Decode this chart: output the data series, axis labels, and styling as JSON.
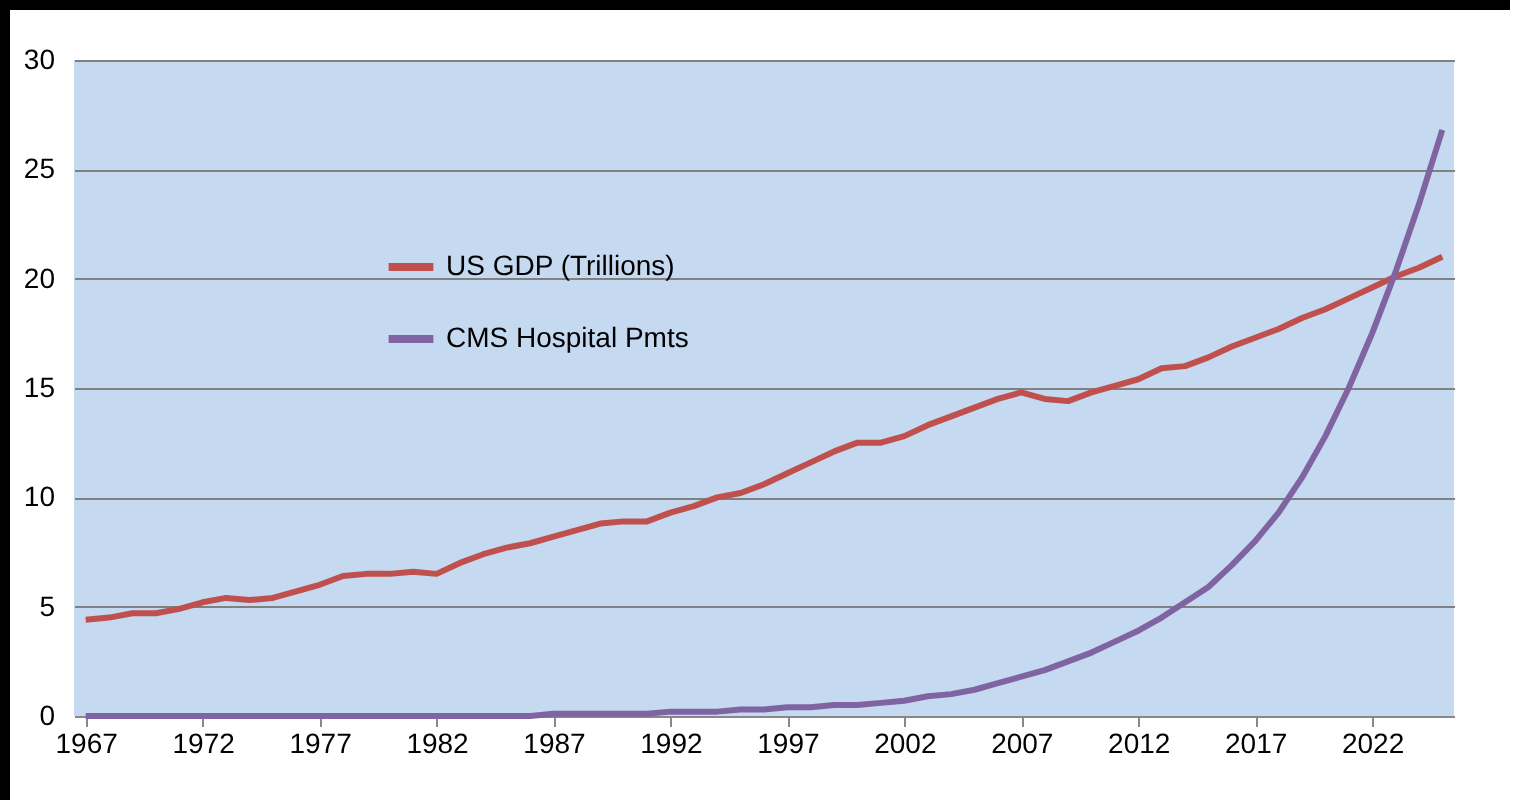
{
  "chart_data": {
    "type": "line",
    "x": [
      1967,
      1968,
      1969,
      1970,
      1971,
      1972,
      1973,
      1974,
      1975,
      1976,
      1977,
      1978,
      1979,
      1980,
      1981,
      1982,
      1983,
      1984,
      1985,
      1986,
      1987,
      1988,
      1989,
      1990,
      1991,
      1992,
      1993,
      1994,
      1995,
      1996,
      1997,
      1998,
      1999,
      2000,
      2001,
      2002,
      2003,
      2004,
      2005,
      2006,
      2007,
      2008,
      2009,
      2010,
      2011,
      2012,
      2013,
      2014,
      2015,
      2016,
      2017,
      2018,
      2019,
      2020,
      2021,
      2022,
      2023,
      2024,
      2025
    ],
    "series": [
      {
        "name": "US GDP (Trillions)",
        "color": "#c0504d",
        "values": [
          4.4,
          4.5,
          4.7,
          4.7,
          4.9,
          5.2,
          5.4,
          5.3,
          5.4,
          5.7,
          6.0,
          6.4,
          6.5,
          6.5,
          6.6,
          6.5,
          7.0,
          7.4,
          7.7,
          7.9,
          8.2,
          8.5,
          8.8,
          8.9,
          8.9,
          9.3,
          9.6,
          10.0,
          10.2,
          10.6,
          11.1,
          11.6,
          12.1,
          12.5,
          12.5,
          12.8,
          13.3,
          13.7,
          14.1,
          14.5,
          14.8,
          14.5,
          14.4,
          14.8,
          15.1,
          15.4,
          15.9,
          16.0,
          16.4,
          16.9,
          17.3,
          17.7,
          18.2,
          18.6,
          19.1,
          19.6,
          20.1,
          20.5,
          21.0
        ]
      },
      {
        "name": "CMS Hospital Pmts",
        "color": "#8064a2",
        "values": [
          0,
          0,
          0,
          0,
          0,
          0,
          0,
          0,
          0,
          0,
          0,
          0,
          0,
          0,
          0,
          0,
          0,
          0,
          0,
          0,
          0.1,
          0.1,
          0.1,
          0.1,
          0.1,
          0.2,
          0.2,
          0.2,
          0.3,
          0.3,
          0.4,
          0.4,
          0.5,
          0.5,
          0.6,
          0.7,
          0.9,
          1.0,
          1.2,
          1.5,
          1.8,
          2.1,
          2.5,
          2.9,
          3.4,
          3.9,
          4.5,
          5.2,
          5.9,
          6.9,
          8.0,
          9.3,
          10.9,
          12.8,
          15.0,
          17.5,
          20.3,
          23.4,
          26.8
        ]
      }
    ],
    "xlim": [
      1966.5,
      2025.5
    ],
    "xticks": [
      1967,
      1972,
      1977,
      1982,
      1987,
      1992,
      1997,
      2002,
      2007,
      2012,
      2017,
      2022
    ],
    "ylim": [
      0,
      30
    ],
    "yticks": [
      0,
      5,
      10,
      15,
      20,
      25,
      30
    ],
    "grid": "y",
    "legend": "top left"
  }
}
